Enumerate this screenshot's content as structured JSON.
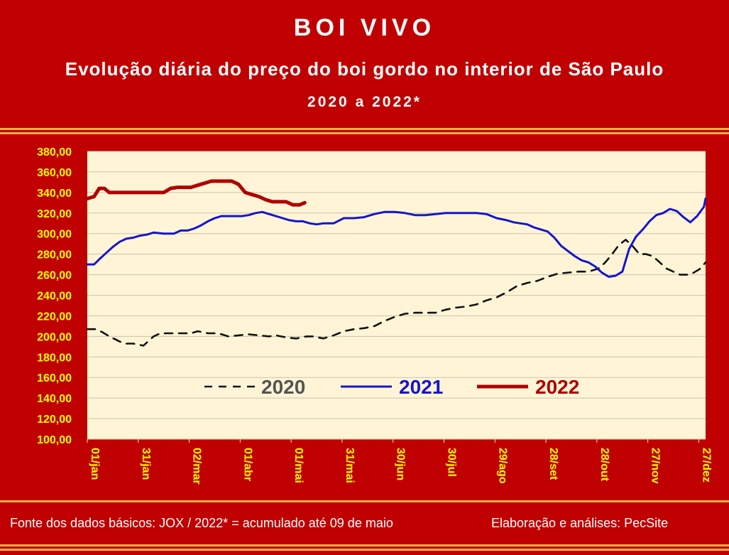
{
  "header": {
    "title": "BOI VIVO",
    "subtitle": "Evolução diária do preço do boi gordo no interior de São Paulo",
    "period": "2020 a 2022*"
  },
  "footer": {
    "source": "Fonte dos dados básicos: JOX   /  2022* = acumulado até 09 de maio",
    "credit": "Elaboração e análises: PecSite"
  },
  "colors": {
    "background": "#c00000",
    "plot_area": "#fff5d6",
    "axis_labels": "#ffff00",
    "series_2020": "#111111",
    "series_2021": "#1515cc",
    "series_2022": "#b00000"
  },
  "chart_data": {
    "type": "line",
    "x_unit": "day_of_year",
    "x_tick_labels": [
      "01/jan",
      "31/jan",
      "02/mar",
      "01/abr",
      "01/mai",
      "31/mai",
      "30/jun",
      "30/jul",
      "29/ago",
      "28/set",
      "28/out",
      "27/nov",
      "27/dez"
    ],
    "x_tick_days": [
      1,
      31,
      61,
      91,
      121,
      151,
      181,
      211,
      241,
      271,
      301,
      331,
      361
    ],
    "xlim": [
      1,
      365
    ],
    "ylim": [
      100,
      380
    ],
    "y_tick_labels": [
      "380,00",
      "360,00",
      "340,00",
      "320,00",
      "300,00",
      "280,00",
      "260,00",
      "240,00",
      "220,00",
      "200,00",
      "180,00",
      "160,00",
      "140,00",
      "120,00",
      "100,00"
    ],
    "y_ticks": [
      380,
      360,
      340,
      320,
      300,
      280,
      260,
      240,
      220,
      200,
      180,
      160,
      140,
      120,
      100
    ],
    "grid": true,
    "legend_position": "center",
    "series": [
      {
        "name": "2020",
        "style": "dashed",
        "x": [
          1,
          6,
          10,
          14,
          20,
          24,
          28,
          34,
          40,
          44,
          50,
          56,
          62,
          66,
          72,
          78,
          84,
          90,
          96,
          102,
          108,
          112,
          118,
          124,
          130,
          134,
          140,
          146,
          152,
          158,
          164,
          170,
          176,
          182,
          188,
          194,
          200,
          206,
          212,
          218,
          224,
          230,
          236,
          242,
          248,
          254,
          260,
          266,
          272,
          278,
          284,
          290,
          296,
          302,
          306,
          310,
          314,
          318,
          322,
          326,
          330,
          334,
          338,
          342,
          346,
          350,
          354,
          358,
          362,
          365
        ],
        "y": [
          207,
          207,
          204,
          200,
          195,
          193,
          193,
          191,
          200,
          203,
          203,
          203,
          203,
          205,
          203,
          203,
          200,
          201,
          202,
          201,
          200,
          201,
          199,
          198,
          200,
          200,
          198,
          201,
          205,
          207,
          208,
          210,
          215,
          219,
          222,
          223,
          223,
          223,
          226,
          228,
          229,
          231,
          235,
          238,
          243,
          249,
          252,
          254,
          258,
          261,
          262,
          263,
          263,
          266,
          272,
          280,
          289,
          294,
          288,
          280,
          280,
          278,
          272,
          266,
          263,
          260,
          260,
          262,
          266,
          272
        ]
      },
      {
        "name": "2021",
        "style": "solid",
        "x": [
          1,
          5,
          8,
          12,
          16,
          20,
          24,
          28,
          32,
          36,
          40,
          46,
          52,
          56,
          60,
          64,
          68,
          72,
          76,
          80,
          84,
          88,
          92,
          96,
          100,
          104,
          108,
          112,
          116,
          120,
          124,
          128,
          132,
          136,
          140,
          146,
          152,
          158,
          164,
          170,
          176,
          182,
          188,
          194,
          200,
          206,
          212,
          218,
          224,
          230,
          236,
          242,
          248,
          252,
          256,
          260,
          264,
          268,
          272,
          276,
          280,
          284,
          288,
          292,
          296,
          300,
          304,
          308,
          312,
          316,
          320,
          324,
          328,
          332,
          336,
          340,
          344,
          348,
          352,
          356,
          360,
          364,
          365
        ],
        "y": [
          270,
          270,
          275,
          281,
          287,
          292,
          295,
          296,
          298,
          299,
          301,
          300,
          300,
          303,
          303,
          305,
          308,
          312,
          315,
          317,
          317,
          317,
          317,
          318,
          320,
          321,
          319,
          317,
          315,
          313,
          312,
          312,
          310,
          309,
          310,
          310,
          315,
          315,
          316,
          319,
          321,
          321,
          320,
          318,
          318,
          319,
          320,
          320,
          320,
          320,
          319,
          315,
          313,
          311,
          310,
          309,
          306,
          304,
          302,
          296,
          288,
          283,
          278,
          274,
          272,
          268,
          262,
          258,
          259,
          263,
          285,
          297,
          304,
          312,
          318,
          320,
          324,
          322,
          316,
          311,
          317,
          326,
          334
        ]
      },
      {
        "name": "2022",
        "style": "thick",
        "x": [
          1,
          5,
          8,
          11,
          14,
          18,
          22,
          26,
          30,
          34,
          38,
          42,
          46,
          50,
          54,
          58,
          62,
          66,
          70,
          74,
          78,
          82,
          86,
          90,
          94,
          98,
          102,
          106,
          110,
          114,
          118,
          122,
          126,
          129
        ],
        "y": [
          334,
          336,
          344,
          344,
          340,
          340,
          340,
          340,
          340,
          340,
          340,
          340,
          340,
          344,
          345,
          345,
          345,
          347,
          349,
          351,
          351,
          351,
          351,
          348,
          340,
          338,
          336,
          333,
          331,
          331,
          331,
          328,
          328,
          330
        ]
      }
    ]
  }
}
